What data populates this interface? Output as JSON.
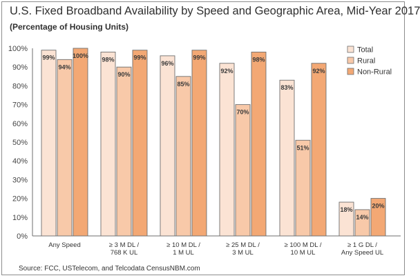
{
  "chart_data": {
    "type": "bar",
    "title": "U.S. Fixed Broadband Availability by Speed and Geographic Area, Mid-Year 2017",
    "subtitle": "(Percentage of Housing Units)",
    "source": "Source: FCC, USTelecom, and Telcodata CensusNBM.com",
    "categories": [
      [
        "Any Speed"
      ],
      [
        "≥ 3 M DL /",
        "768 K UL"
      ],
      [
        "≥ 10 M DL /",
        "1 M UL"
      ],
      [
        "≥ 25 M DL /",
        "3 M UL"
      ],
      [
        "≥ 100 M DL /",
        "10 M UL"
      ],
      [
        "≥ 1 G DL /",
        "Any Speed UL"
      ]
    ],
    "series": [
      {
        "name": "Total",
        "color": "#fbe3d4",
        "values": [
          99,
          98,
          96,
          92,
          83,
          18
        ]
      },
      {
        "name": "Rural",
        "color": "#f8c9a9",
        "values": [
          94,
          90,
          85,
          70,
          51,
          14
        ]
      },
      {
        "name": "Non-Rural",
        "color": "#f3a874",
        "values": [
          100,
          99,
          99,
          98,
          92,
          20
        ]
      }
    ],
    "data_labels": [
      [
        "99%",
        "98%",
        "96%",
        "92%",
        "83%",
        "18%"
      ],
      [
        "94%",
        "90%",
        "85%",
        "70%",
        "51%",
        "14%"
      ],
      [
        "100%",
        "99%",
        "99%",
        "98%",
        "92%",
        "20%"
      ]
    ],
    "yticks": [
      "0%",
      "10%",
      "20%",
      "30%",
      "40%",
      "50%",
      "60%",
      "70%",
      "80%",
      "90%",
      "100%"
    ],
    "ylim": [
      0,
      100
    ],
    "grid": false,
    "legend": "top-right",
    "bar_edge_color": "#6e6e6e",
    "axis_color": "#6e6e6e"
  }
}
